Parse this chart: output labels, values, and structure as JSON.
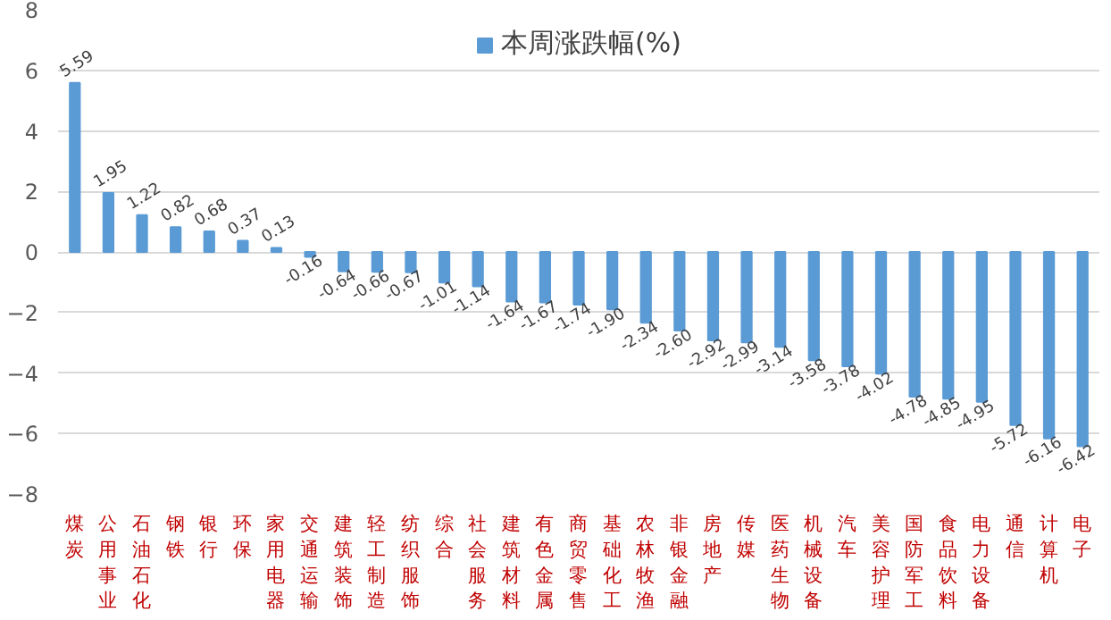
{
  "chart_data": {
    "type": "bar",
    "categories": [
      "煤炭",
      "公用事业",
      "石油石化",
      "钢铁",
      "银行",
      "环保",
      "家用电器",
      "交通运输",
      "建筑装饰",
      "轻工制造",
      "纺织服饰",
      "综合",
      "社会服务",
      "建筑材料",
      "有色金属",
      "商贸零售",
      "基础化工",
      "农林牧渔",
      "非银金融",
      "房地产",
      "传媒",
      "医药生物",
      "机械设备",
      "汽车",
      "美容护理",
      "国防军工",
      "食品饮料",
      "电力设备",
      "通信",
      "计算机",
      "电子"
    ],
    "series": [
      {
        "name": "本周涨跌幅(%)",
        "color": "#5b9bd5",
        "values": [
          5.59,
          1.95,
          1.22,
          0.82,
          0.68,
          0.37,
          0.13,
          -0.16,
          -0.64,
          -0.66,
          -0.67,
          -1.01,
          -1.14,
          -1.64,
          -1.67,
          -1.74,
          -1.9,
          -2.34,
          -2.6,
          -2.92,
          -2.99,
          -3.14,
          -3.58,
          -3.78,
          -4.02,
          -4.78,
          -4.85,
          -4.95,
          -5.72,
          -6.16,
          -6.42
        ]
      }
    ],
    "value_labels": [
      "5.59",
      "1.95",
      "1.22",
      "0.82",
      "0.68",
      "0.37",
      "0.13",
      "-0.16",
      "-0.64",
      "-0.66",
      "-0.67",
      "-1.01",
      "-1.14",
      "-1.64",
      "-1.67",
      "-1.74",
      "-1.90",
      "-2.34",
      "-2.60",
      "-2.92",
      "-2.99",
      "-3.14",
      "-3.58",
      "-3.78",
      "-4.02",
      "-4.78",
      "-4.85",
      "-4.95",
      "-5.72",
      "-6.16",
      "-6.42"
    ],
    "ylim": [
      -8,
      8
    ],
    "yticks": [
      -8,
      -6,
      -4,
      -2,
      0,
      2,
      4,
      6,
      8
    ],
    "grid": "y",
    "legend": "top"
  }
}
